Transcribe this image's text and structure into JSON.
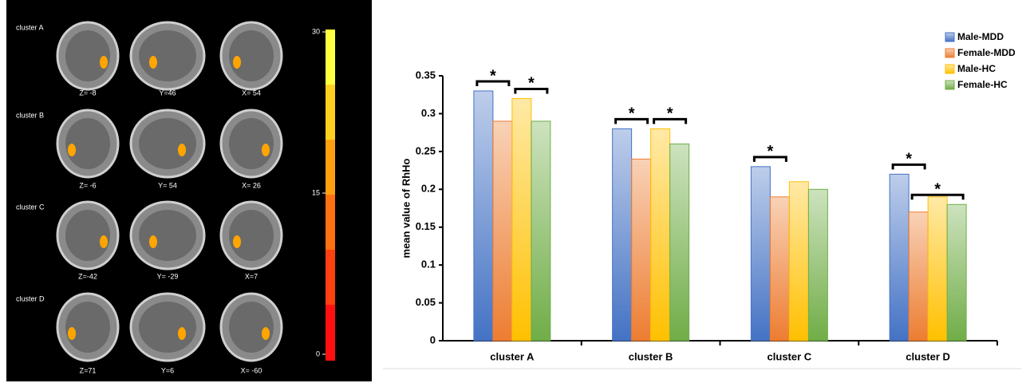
{
  "brain_panel": {
    "rows": [
      {
        "label": "cluster A",
        "coords": [
          "Z= -8",
          "Y=46",
          "X= 54"
        ]
      },
      {
        "label": "cluster B",
        "coords": [
          "Z= -6",
          "Y= 54",
          "X= 26"
        ]
      },
      {
        "label": "cluster C",
        "coords": [
          "Z=-42",
          "Y= -29",
          "X=7"
        ]
      },
      {
        "label": "cluster D",
        "coords": [
          "Z=71",
          "Y=6",
          "X= -60"
        ]
      }
    ],
    "colorbar": {
      "lim": [
        0,
        30
      ],
      "ticks": [
        0,
        15,
        30
      ]
    }
  },
  "chart_data": {
    "type": "bar",
    "y_label": "mean value of RhHo",
    "categories": [
      "cluster A",
      "cluster B",
      "cluster C",
      "cluster D"
    ],
    "series": [
      {
        "name": "Male-MDD",
        "color": "#4472c4",
        "values": [
          0.33,
          0.28,
          0.23,
          0.22
        ]
      },
      {
        "name": "Female-MDD",
        "color": "#ed7d31",
        "values": [
          0.29,
          0.24,
          0.19,
          0.17
        ]
      },
      {
        "name": "Male-HC",
        "color": "#ffc000",
        "values": [
          0.32,
          0.28,
          0.21,
          0.19
        ]
      },
      {
        "name": "Female-HC",
        "color": "#70ad47",
        "values": [
          0.29,
          0.26,
          0.2,
          0.18
        ]
      }
    ],
    "ylim": [
      0,
      0.35
    ],
    "yticks": [
      0,
      0.05,
      0.1,
      0.15,
      0.2,
      0.25,
      0.3,
      0.35
    ],
    "legend": "top-right",
    "annotations": [
      {
        "label": "*",
        "category": 0,
        "pair": [
          0,
          1
        ]
      },
      {
        "label": "*",
        "category": 0,
        "pair": [
          2,
          3
        ]
      },
      {
        "label": "*",
        "category": 1,
        "pair": [
          0,
          1
        ]
      },
      {
        "label": "*",
        "category": 1,
        "pair": [
          2,
          3
        ]
      },
      {
        "label": "*",
        "category": 2,
        "pair": [
          0,
          1
        ]
      },
      {
        "label": "*",
        "category": 3,
        "pair": [
          0,
          1
        ]
      },
      {
        "label": "*",
        "category": 3,
        "pair": [
          1,
          3
        ]
      }
    ]
  }
}
